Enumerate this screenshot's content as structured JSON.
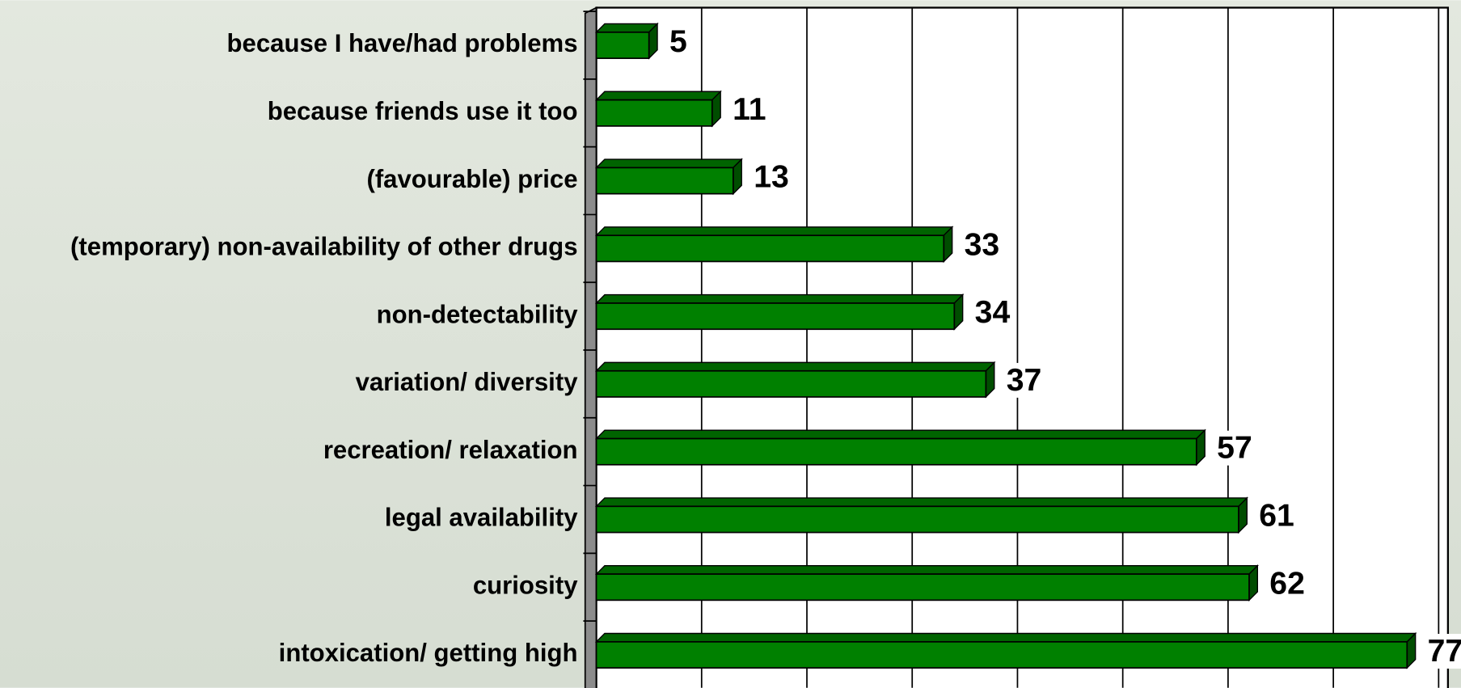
{
  "chart_data": {
    "type": "bar",
    "orientation": "horizontal",
    "categories": [
      "because I have/had problems",
      "because friends use it too",
      "(favourable) price",
      "(temporary) non-availability of other drugs",
      "non-detectability",
      "variation/ diversity",
      "recreation/ relaxation",
      "legal availability",
      "curiosity",
      "intoxication/ getting high"
    ],
    "values": [
      5,
      11,
      13,
      33,
      34,
      37,
      57,
      61,
      62,
      77
    ],
    "color": "#008000",
    "xlim": [
      0,
      80
    ],
    "xticks": [
      0,
      10,
      20,
      30,
      40,
      50,
      60,
      70,
      80
    ],
    "grid": true
  }
}
